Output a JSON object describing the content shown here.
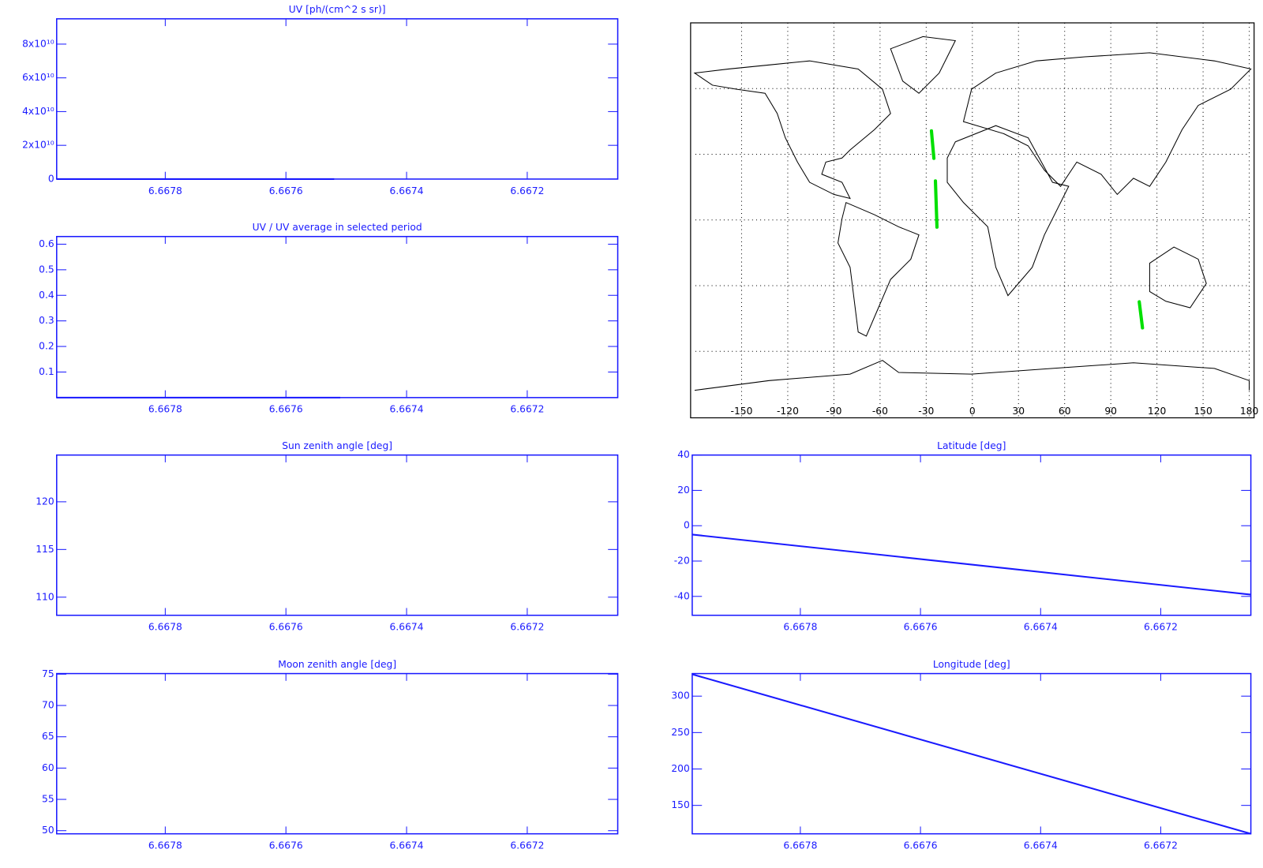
{
  "chart_data": [
    {
      "type": "line",
      "title": "UV [ph/(cm^2 s sr)]",
      "color": "#1a1aff",
      "xlim": [
        6.66798,
        6.66705
      ],
      "xticks": [
        6.6678,
        6.6676,
        6.6674,
        6.6672
      ],
      "ylim": [
        0,
        95000000000
      ],
      "yticks": [
        0,
        {
          "value": 20000000000,
          "label": "2x10¹⁰"
        },
        {
          "value": 40000000000,
          "label": "4x10¹⁰"
        },
        {
          "value": 60000000000,
          "label": "6x10¹⁰"
        },
        {
          "value": 80000000000,
          "label": "8x10¹⁰"
        }
      ],
      "series": [
        {
          "x": [
            6.66798,
            6.66752
          ],
          "values": [
            0,
            0
          ]
        }
      ]
    },
    {
      "type": "map",
      "xlim": [
        -180,
        180
      ],
      "ylim": [
        -90,
        90
      ],
      "xticks": [
        -150,
        -120,
        -90,
        -60,
        -30,
        0,
        30,
        60,
        90,
        120,
        150,
        180
      ],
      "ygrid": [
        -60,
        -30,
        0,
        30,
        60
      ],
      "series": [
        {
          "color": "#00e000",
          "x": [
            -26.6,
            -25
          ],
          "values": [
            40.7,
            28.1
          ]
        },
        {
          "color": "#00e000",
          "x": [
            -24,
            -23
          ],
          "values": [
            17.8,
            -3.3
          ]
        },
        {
          "color": "#00e000",
          "x": [
            108.5,
            110.6
          ],
          "values": [
            -37.4,
            -49.3
          ]
        }
      ]
    },
    {
      "type": "line",
      "title": "UV / UV average in selected period",
      "color": "#1a1aff",
      "xlim": [
        6.66798,
        6.66705
      ],
      "xticks": [
        6.6678,
        6.6676,
        6.6674,
        6.6672
      ],
      "ylim": [
        0,
        0.63
      ],
      "yticks": [
        0.1,
        0.2,
        0.3,
        0.4,
        0.5,
        0.6
      ],
      "series": [
        {
          "x": [
            6.66798,
            6.66751
          ],
          "values": [
            0,
            0
          ]
        }
      ]
    },
    {
      "type": "line",
      "title": "Sun zenith angle [deg]",
      "color": "#1a1aff",
      "xlim": [
        6.66798,
        6.66705
      ],
      "xticks": [
        6.6678,
        6.6676,
        6.6674,
        6.6672
      ],
      "ylim": [
        108.1,
        124.9
      ],
      "yticks": [
        110,
        115,
        120
      ],
      "series": []
    },
    {
      "type": "line",
      "title": "Latitude [deg]",
      "color": "#1a1aff",
      "xlim": [
        6.66798,
        6.66705
      ],
      "xticks": [
        6.6678,
        6.6676,
        6.6674,
        6.6672
      ],
      "ylim": [
        -50.7,
        40
      ],
      "yticks": [
        -40,
        -20,
        0,
        20,
        40
      ],
      "series": [
        {
          "x": [
            6.66798,
            6.66705
          ],
          "values": [
            -5,
            -39
          ]
        }
      ]
    },
    {
      "type": "line",
      "title": "Moon zenith angle [deg]",
      "color": "#1a1aff",
      "xlim": [
        6.66798,
        6.66705
      ],
      "xticks": [
        6.6678,
        6.6676,
        6.6674,
        6.6672
      ],
      "ylim": [
        49.5,
        75.1
      ],
      "yticks": [
        50,
        55,
        60,
        65,
        70,
        75
      ],
      "series": []
    },
    {
      "type": "line",
      "title": "Longitude [deg]",
      "color": "#1a1aff",
      "xlim": [
        6.66798,
        6.66705
      ],
      "xticks": [
        6.6678,
        6.6676,
        6.6674,
        6.6672
      ],
      "ylim": [
        111,
        331
      ],
      "yticks": [
        150,
        200,
        250,
        300
      ],
      "series": [
        {
          "x": [
            6.66798,
            6.66705
          ],
          "values": [
            330,
            111
          ]
        }
      ]
    }
  ]
}
